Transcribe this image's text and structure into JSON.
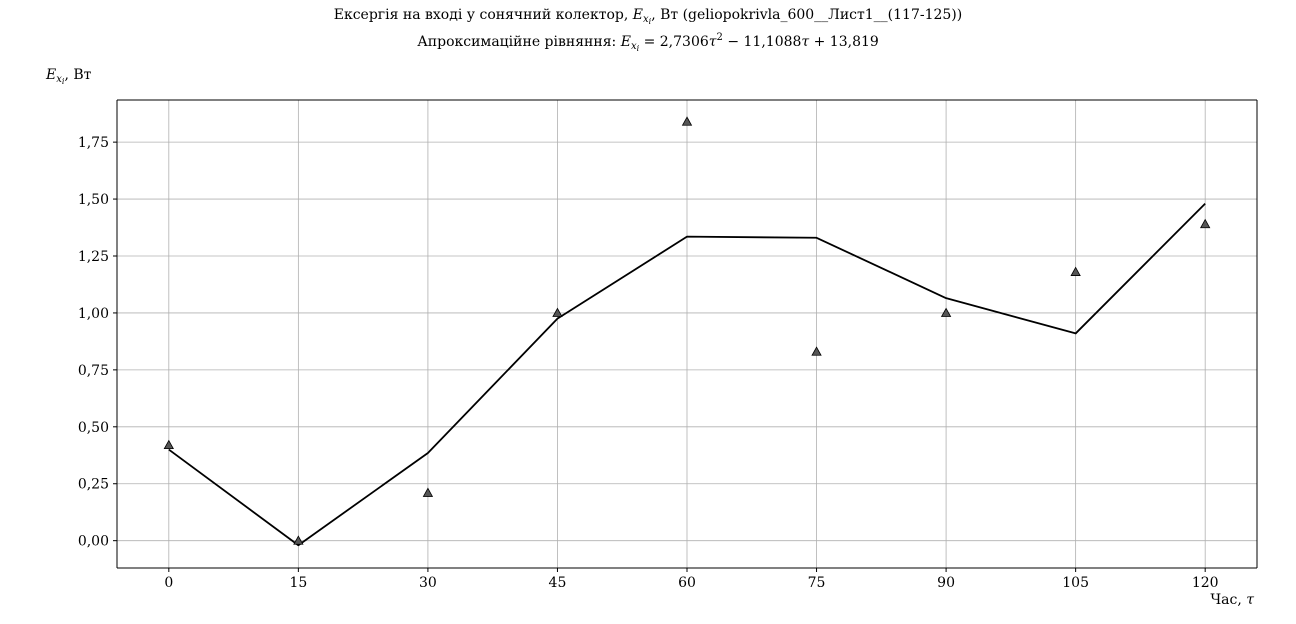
{
  "chart_data": {
    "type": "line",
    "title_main": "Ексергія на вході у сонячний колектор, ",
    "title_symbol": "E",
    "title_symbol_sub": "x",
    "title_symbol_subsub": "i",
    "title_rest": ", Вт (geliopokrivla_600__Лист1__(117-125))",
    "subtitle_prefix": "Апроксимаційне рівняння: ",
    "subtitle_lhs": "E",
    "subtitle_lhs_sub": "x",
    "subtitle_lhs_subsub": "i",
    "subtitle_eq1": " = 2,7306",
    "subtitle_tau": "τ",
    "subtitle_pow": "2",
    "subtitle_eq2": " − 11,1088",
    "subtitle_eq3": " + 13,819",
    "ylabel_symbol": "E",
    "ylabel_sub": "x",
    "ylabel_subsub": "i",
    "ylabel_unit": ", Вт",
    "xlabel_text": "Час, ",
    "xlabel_symbol": "τ",
    "xlim": [
      -6,
      126
    ],
    "ylim": [
      -0.12,
      1.935
    ],
    "x_ticks": [
      0,
      15,
      30,
      45,
      60,
      75,
      90,
      105,
      120
    ],
    "x_tick_labels": [
      "0",
      "15",
      "30",
      "45",
      "60",
      "75",
      "90",
      "105",
      "120"
    ],
    "y_ticks": [
      0,
      0.25,
      0.5,
      0.75,
      1.0,
      1.25,
      1.5,
      1.75
    ],
    "y_tick_labels": [
      "0,00",
      "0,25",
      "0,50",
      "0,75",
      "1,00",
      "1,25",
      "1,50",
      "1,75"
    ],
    "grid": true,
    "series": [
      {
        "kind": "line",
        "color": "#000000",
        "x": [
          0,
          15,
          30,
          45,
          60,
          75,
          90,
          105,
          120
        ],
        "y": [
          0.4,
          -0.02,
          0.385,
          0.975,
          1.335,
          1.33,
          1.065,
          0.91,
          1.48
        ]
      },
      {
        "kind": "scatter",
        "marker": "triangle",
        "color": "#555555",
        "x": [
          0,
          15,
          30,
          45,
          60,
          75,
          90,
          105,
          120
        ],
        "y": [
          0.42,
          0.0,
          0.21,
          1.0,
          1.84,
          0.83,
          1.0,
          1.18,
          1.39
        ]
      }
    ]
  }
}
